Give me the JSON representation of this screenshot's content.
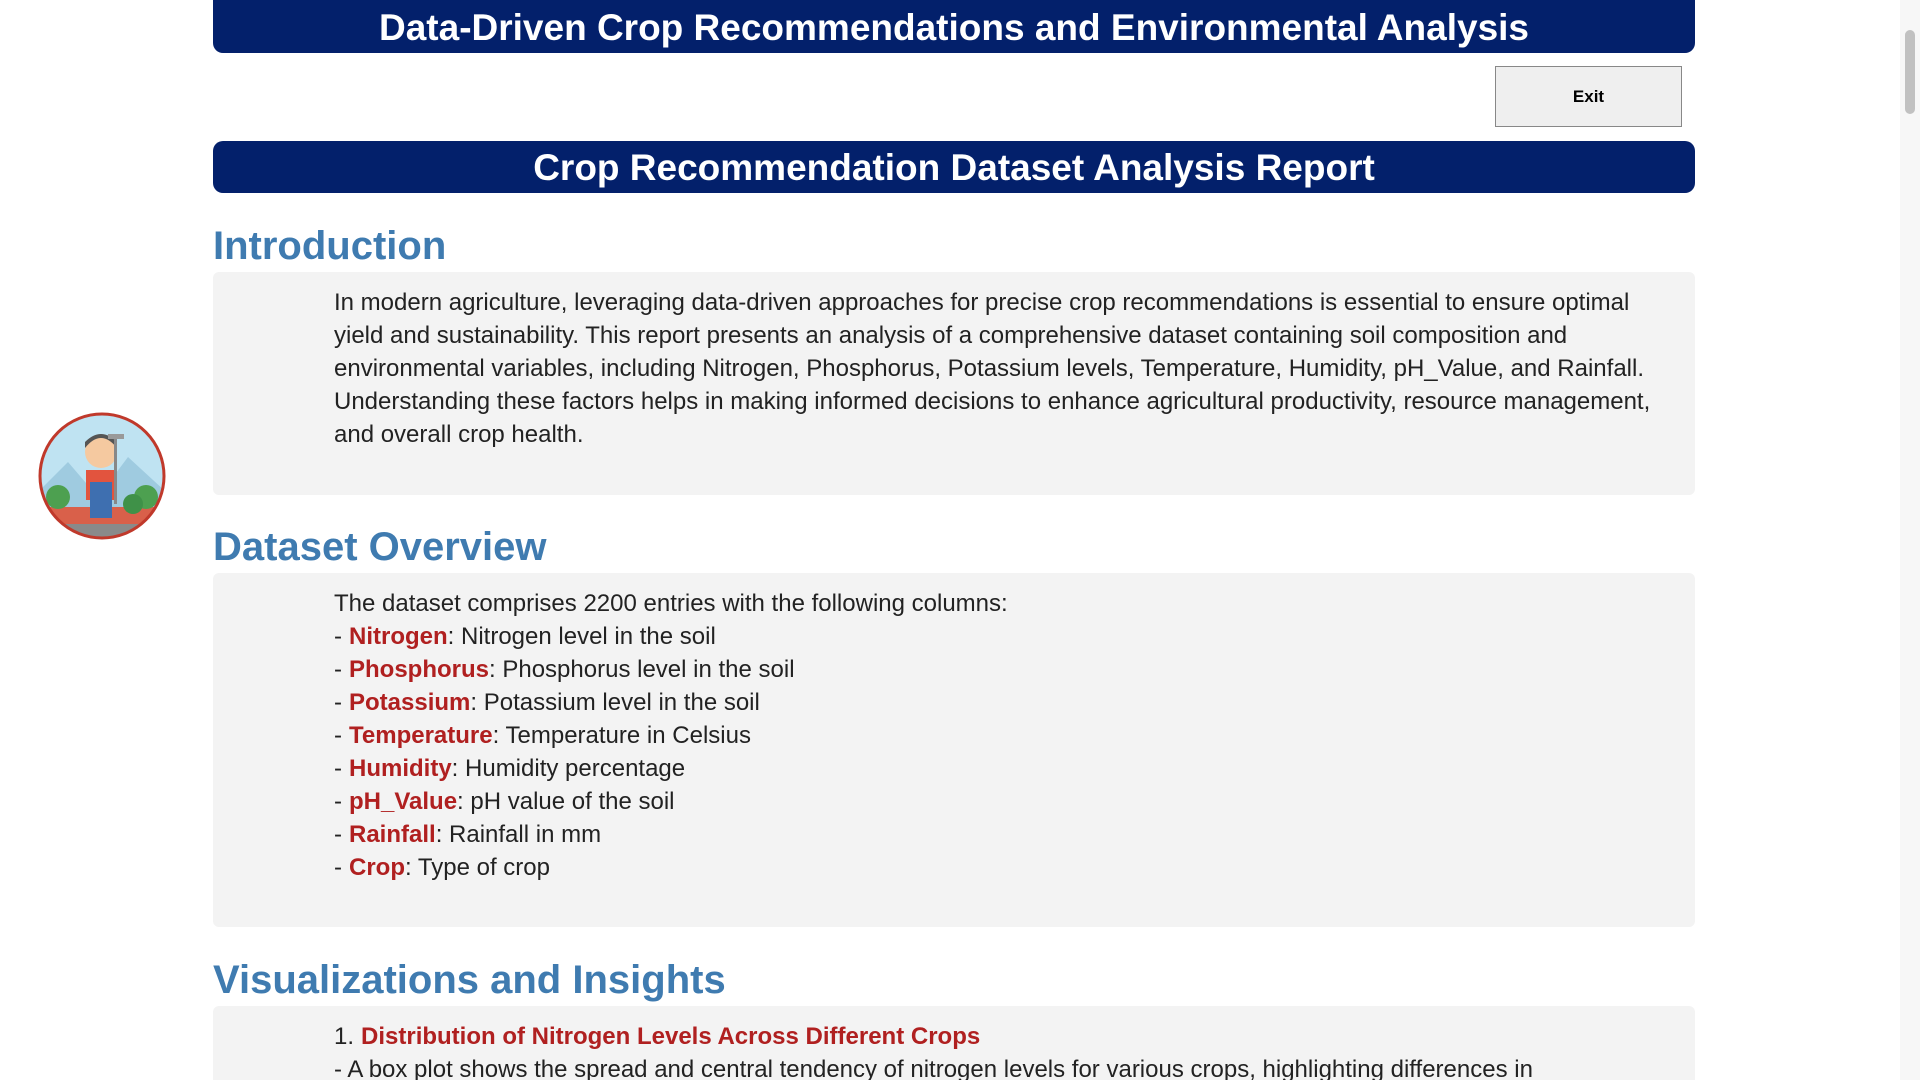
{
  "header": {
    "title": "Data-Driven Crop Recommendations and Environmental Analysis"
  },
  "exit_button": {
    "label": "Exit"
  },
  "report_title": "Crop Recommendation Dataset Analysis Report",
  "sections": [
    {
      "heading": "Introduction",
      "paragraph": "In modern agriculture, leveraging data-driven approaches for precise crop recommendations is essential to ensure optimal yield and sustainability. This report presents an analysis of a comprehensive dataset containing soil composition and environmental variables, including Nitrogen, Phosphorus, Potassium levels, Temperature, Humidity, pH_Value, and Rainfall. Understanding these factors helps in making informed decisions to enhance agricultural productivity, resource management, and overall crop health."
    },
    {
      "heading": "Dataset Overview",
      "paragraph": "The dataset comprises 2200 entries with the following columns:",
      "items": [
        {
          "marker": "-",
          "term": "Nitrogen",
          "description": ": Nitrogen level in the soil"
        },
        {
          "marker": "-",
          "term": "Phosphorus",
          "description": ": Phosphorus level in the soil"
        },
        {
          "marker": "-",
          "term": "Potassium",
          "description": ": Potassium level in the soil"
        },
        {
          "marker": "-",
          "term": "Temperature",
          "description": ": Temperature in Celsius"
        },
        {
          "marker": "-",
          "term": "Humidity",
          "description": ": Humidity percentage"
        },
        {
          "marker": "-",
          "term": "pH_Value",
          "description": ": pH value of the soil"
        },
        {
          "marker": "-",
          "term": "Rainfall",
          "description": ": Rainfall in mm"
        },
        {
          "marker": "-",
          "term": "Crop",
          "description": ": Type of crop"
        }
      ]
    },
    {
      "heading": "Visualizations and Insights",
      "items": [
        {
          "marker": "1.",
          "term": "Distribution of Nitrogen Levels Across Different Crops"
        }
      ],
      "paragraph": "- A box plot shows the spread and central tendency of nitrogen levels for various crops, highlighting differences in"
    }
  ]
}
